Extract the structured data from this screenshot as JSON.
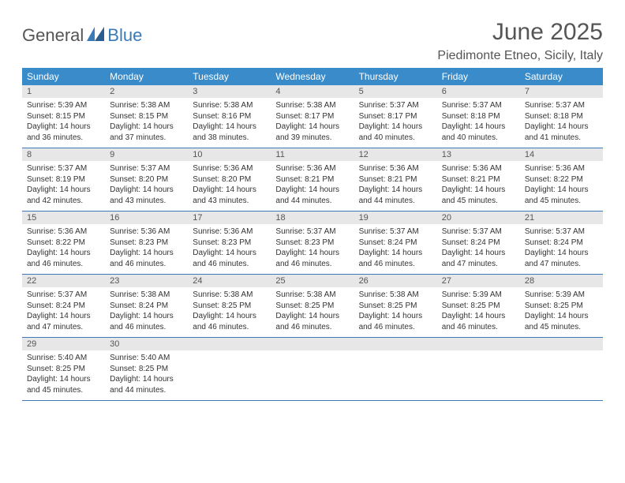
{
  "logo": {
    "text1": "General",
    "text2": "Blue"
  },
  "title": "June 2025",
  "location": "Piedimonte Etneo, Sicily, Italy",
  "colors": {
    "header_bg": "#3a8bc9",
    "accent": "#3a7ab8",
    "daynum_bg": "#e7e7e7",
    "text": "#333333",
    "muted": "#555555"
  },
  "weekdays": [
    "Sunday",
    "Monday",
    "Tuesday",
    "Wednesday",
    "Thursday",
    "Friday",
    "Saturday"
  ],
  "weeks": [
    [
      {
        "n": "1",
        "sr": "5:39 AM",
        "ss": "8:15 PM",
        "d": "14 hours and 36 minutes."
      },
      {
        "n": "2",
        "sr": "5:38 AM",
        "ss": "8:15 PM",
        "d": "14 hours and 37 minutes."
      },
      {
        "n": "3",
        "sr": "5:38 AM",
        "ss": "8:16 PM",
        "d": "14 hours and 38 minutes."
      },
      {
        "n": "4",
        "sr": "5:38 AM",
        "ss": "8:17 PM",
        "d": "14 hours and 39 minutes."
      },
      {
        "n": "5",
        "sr": "5:37 AM",
        "ss": "8:17 PM",
        "d": "14 hours and 40 minutes."
      },
      {
        "n": "6",
        "sr": "5:37 AM",
        "ss": "8:18 PM",
        "d": "14 hours and 40 minutes."
      },
      {
        "n": "7",
        "sr": "5:37 AM",
        "ss": "8:18 PM",
        "d": "14 hours and 41 minutes."
      }
    ],
    [
      {
        "n": "8",
        "sr": "5:37 AM",
        "ss": "8:19 PM",
        "d": "14 hours and 42 minutes."
      },
      {
        "n": "9",
        "sr": "5:37 AM",
        "ss": "8:20 PM",
        "d": "14 hours and 43 minutes."
      },
      {
        "n": "10",
        "sr": "5:36 AM",
        "ss": "8:20 PM",
        "d": "14 hours and 43 minutes."
      },
      {
        "n": "11",
        "sr": "5:36 AM",
        "ss": "8:21 PM",
        "d": "14 hours and 44 minutes."
      },
      {
        "n": "12",
        "sr": "5:36 AM",
        "ss": "8:21 PM",
        "d": "14 hours and 44 minutes."
      },
      {
        "n": "13",
        "sr": "5:36 AM",
        "ss": "8:21 PM",
        "d": "14 hours and 45 minutes."
      },
      {
        "n": "14",
        "sr": "5:36 AM",
        "ss": "8:22 PM",
        "d": "14 hours and 45 minutes."
      }
    ],
    [
      {
        "n": "15",
        "sr": "5:36 AM",
        "ss": "8:22 PM",
        "d": "14 hours and 46 minutes."
      },
      {
        "n": "16",
        "sr": "5:36 AM",
        "ss": "8:23 PM",
        "d": "14 hours and 46 minutes."
      },
      {
        "n": "17",
        "sr": "5:36 AM",
        "ss": "8:23 PM",
        "d": "14 hours and 46 minutes."
      },
      {
        "n": "18",
        "sr": "5:37 AM",
        "ss": "8:23 PM",
        "d": "14 hours and 46 minutes."
      },
      {
        "n": "19",
        "sr": "5:37 AM",
        "ss": "8:24 PM",
        "d": "14 hours and 46 minutes."
      },
      {
        "n": "20",
        "sr": "5:37 AM",
        "ss": "8:24 PM",
        "d": "14 hours and 47 minutes."
      },
      {
        "n": "21",
        "sr": "5:37 AM",
        "ss": "8:24 PM",
        "d": "14 hours and 47 minutes."
      }
    ],
    [
      {
        "n": "22",
        "sr": "5:37 AM",
        "ss": "8:24 PM",
        "d": "14 hours and 47 minutes."
      },
      {
        "n": "23",
        "sr": "5:38 AM",
        "ss": "8:24 PM",
        "d": "14 hours and 46 minutes."
      },
      {
        "n": "24",
        "sr": "5:38 AM",
        "ss": "8:25 PM",
        "d": "14 hours and 46 minutes."
      },
      {
        "n": "25",
        "sr": "5:38 AM",
        "ss": "8:25 PM",
        "d": "14 hours and 46 minutes."
      },
      {
        "n": "26",
        "sr": "5:38 AM",
        "ss": "8:25 PM",
        "d": "14 hours and 46 minutes."
      },
      {
        "n": "27",
        "sr": "5:39 AM",
        "ss": "8:25 PM",
        "d": "14 hours and 46 minutes."
      },
      {
        "n": "28",
        "sr": "5:39 AM",
        "ss": "8:25 PM",
        "d": "14 hours and 45 minutes."
      }
    ],
    [
      {
        "n": "29",
        "sr": "5:40 AM",
        "ss": "8:25 PM",
        "d": "14 hours and 45 minutes."
      },
      {
        "n": "30",
        "sr": "5:40 AM",
        "ss": "8:25 PM",
        "d": "14 hours and 44 minutes."
      },
      null,
      null,
      null,
      null,
      null
    ]
  ],
  "labels": {
    "sunrise": "Sunrise:",
    "sunset": "Sunset:",
    "daylight": "Daylight:"
  }
}
